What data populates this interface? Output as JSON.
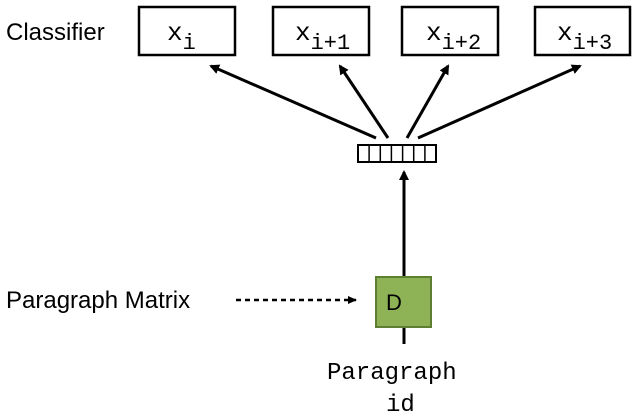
{
  "labels": {
    "classifier": "Classifier",
    "paragraph_matrix": "Paragraph Matrix",
    "paragraph_id_line1": "Paragraph",
    "paragraph_id_line2": "id",
    "matrix_box": "D"
  },
  "outputs": [
    {
      "base": "x",
      "sub": "i"
    },
    {
      "base": "x",
      "sub": "i+1"
    },
    {
      "base": "x",
      "sub": "i+2"
    },
    {
      "base": "x",
      "sub": "i+3"
    }
  ],
  "colors": {
    "matrix_fill": "#8DB356",
    "matrix_stroke": "#5E7F33",
    "stroke": "#000000"
  }
}
